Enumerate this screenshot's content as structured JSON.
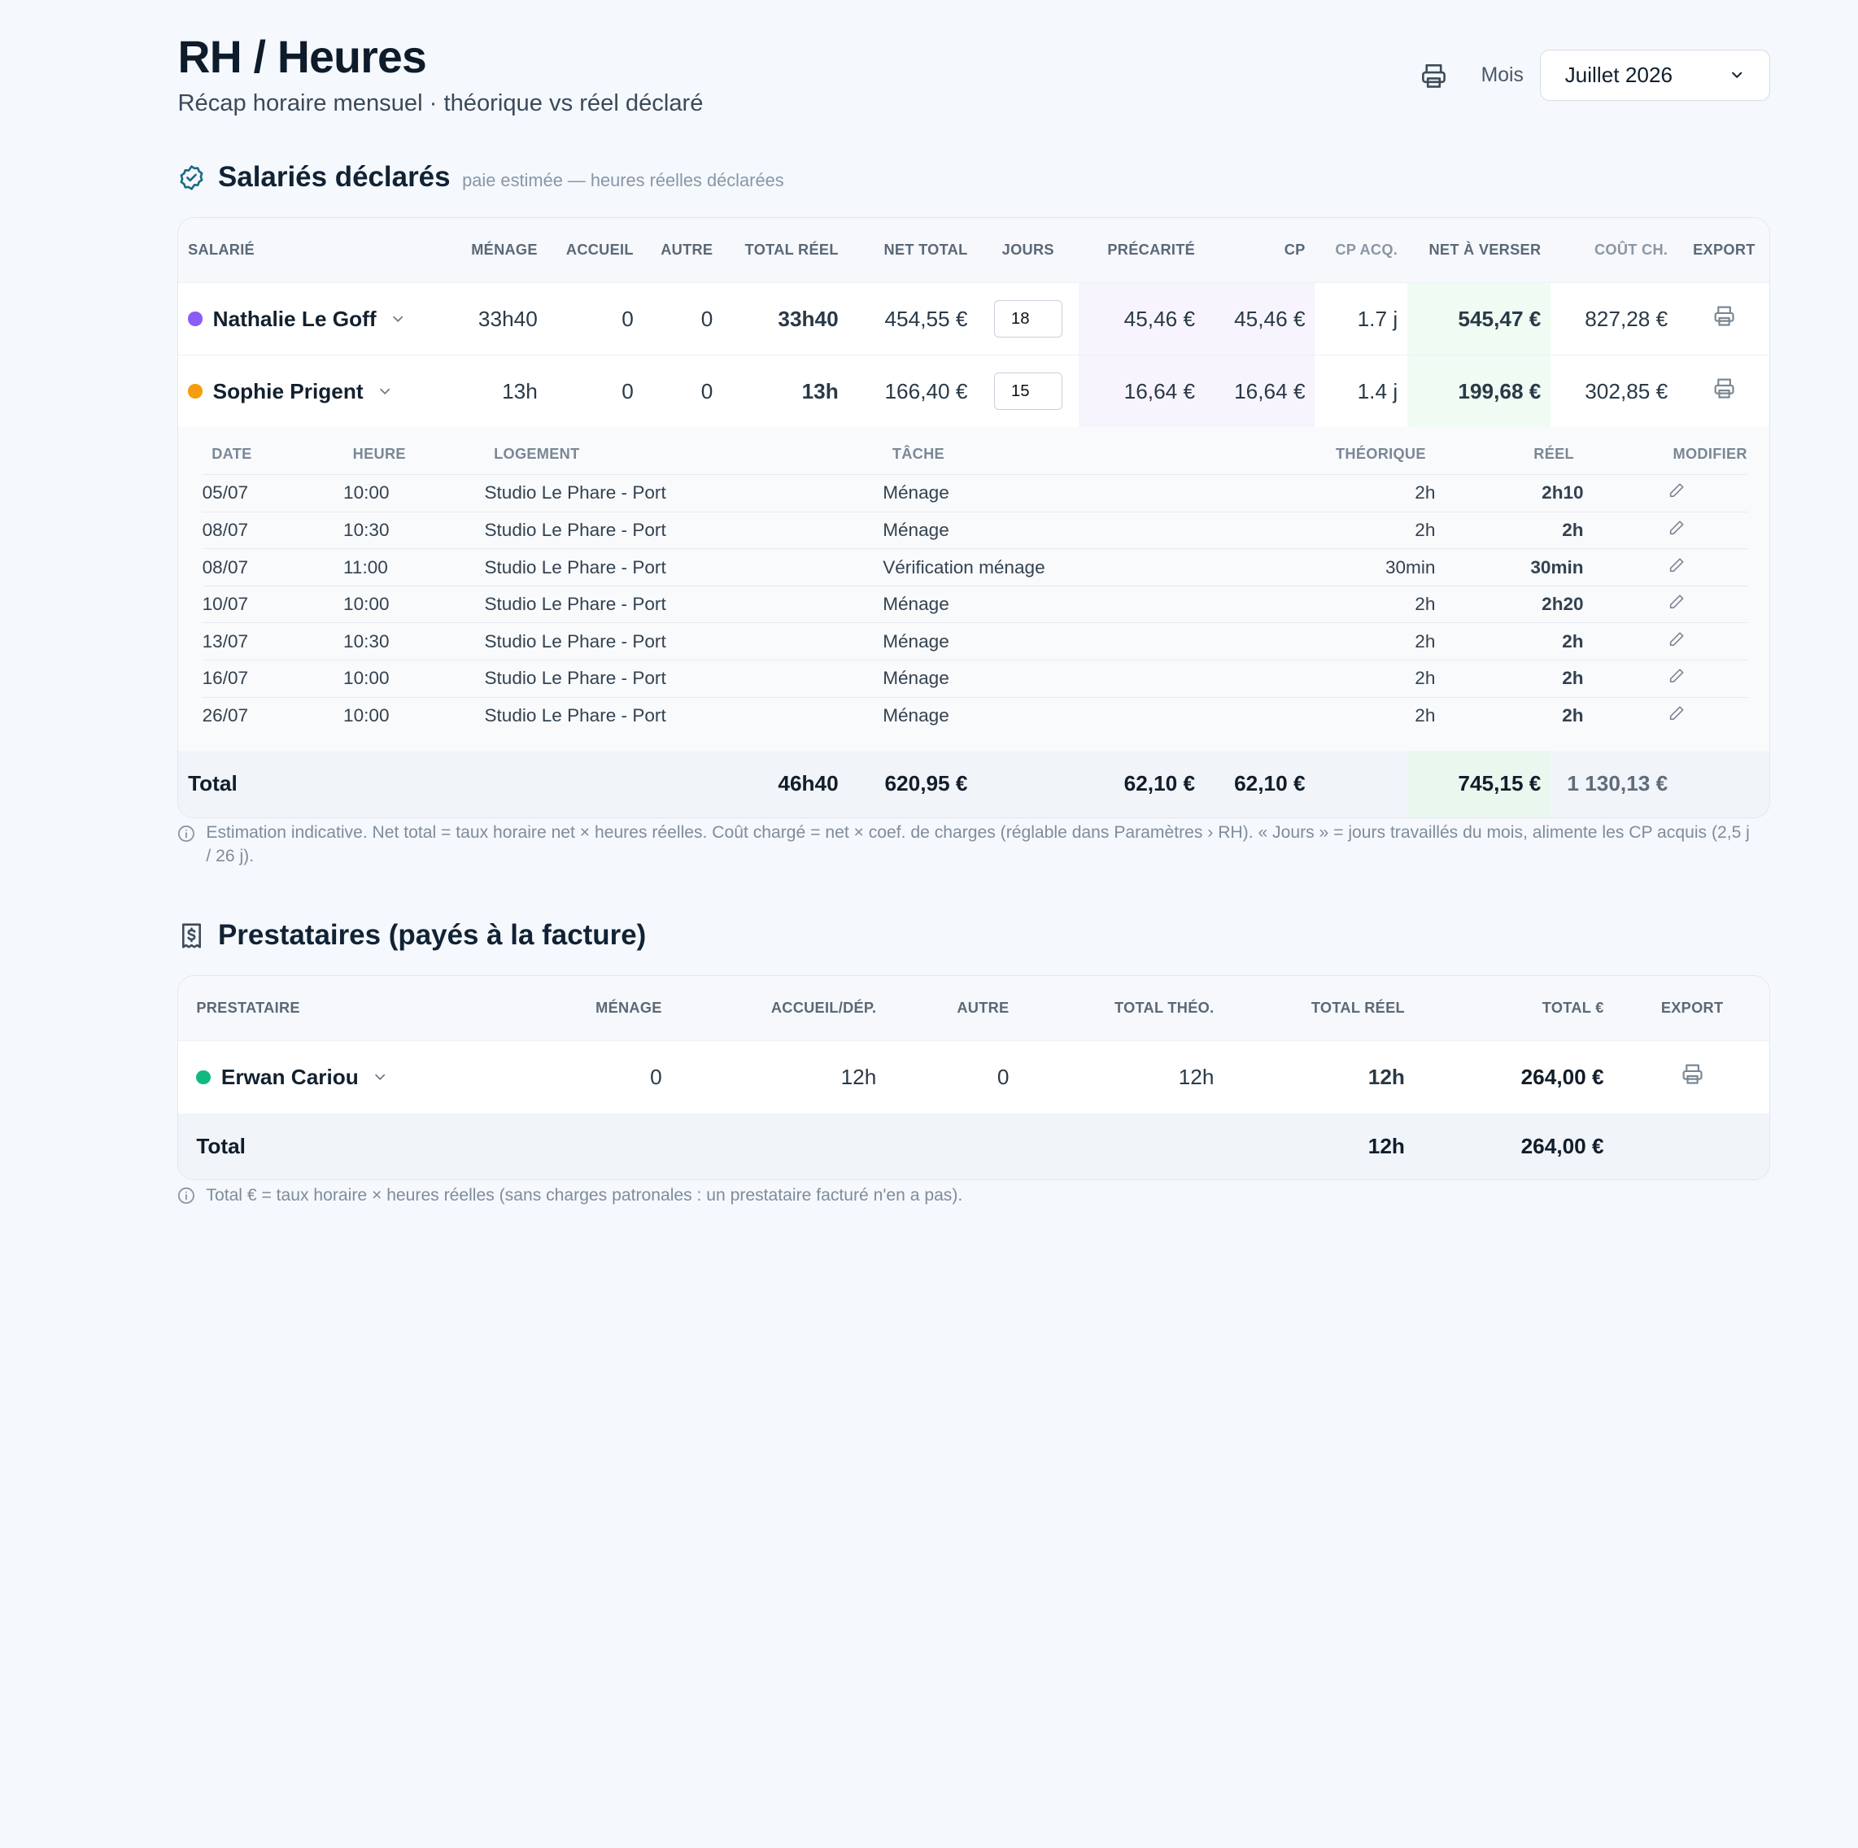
{
  "header": {
    "title": "RH / Heures",
    "subtitle": "Récap horaire mensuel · théorique vs réel déclaré",
    "mois_label": "Mois",
    "mois_value": "Juillet 2026"
  },
  "salaries": {
    "title": "Salariés déclarés",
    "hint": "paie estimée — heures réelles déclarées",
    "columns": [
      "Salarié",
      "Ménage",
      "Accueil",
      "Autre",
      "Total réel",
      "Net total",
      "Jours",
      "Précarité",
      "CP",
      "CP acq.",
      "Net à verser",
      "Coût ch.",
      "Export"
    ],
    "rows": [
      {
        "name": "Nathalie Le Goff",
        "dot": "#8b5cf6",
        "menage": "33h40",
        "accueil": "0",
        "autre": "0",
        "total_reel": "33h40",
        "net_total": "454,55 €",
        "jours": "18",
        "precarite": "45,46 €",
        "cp": "45,46 €",
        "cp_acq": "1.7 j",
        "net_a_verser": "545,47 €",
        "cout_ch": "827,28 €"
      },
      {
        "name": "Sophie Prigent",
        "dot": "#f59e0b",
        "menage": "13h",
        "accueil": "0",
        "autre": "0",
        "total_reel": "13h",
        "net_total": "166,40 €",
        "jours": "15",
        "precarite": "16,64 €",
        "cp": "16,64 €",
        "cp_acq": "1.4 j",
        "net_a_verser": "199,68 €",
        "cout_ch": "302,85 €"
      }
    ],
    "detail": {
      "columns": [
        "Date",
        "Heure",
        "Logement",
        "Tâche",
        "Théorique",
        "Réel",
        "Modifier"
      ],
      "rows": [
        {
          "date": "05/07",
          "heure": "10:00",
          "logement": "Studio Le Phare - Port",
          "tache": "Ménage",
          "theorique": "2h",
          "reel": "2h10"
        },
        {
          "date": "08/07",
          "heure": "10:30",
          "logement": "Studio Le Phare - Port",
          "tache": "Ménage",
          "theorique": "2h",
          "reel": "2h"
        },
        {
          "date": "08/07",
          "heure": "11:00",
          "logement": "Studio Le Phare - Port",
          "tache": "Vérification ménage",
          "theorique": "30min",
          "reel": "30min"
        },
        {
          "date": "10/07",
          "heure": "10:00",
          "logement": "Studio Le Phare - Port",
          "tache": "Ménage",
          "theorique": "2h",
          "reel": "2h20"
        },
        {
          "date": "13/07",
          "heure": "10:30",
          "logement": "Studio Le Phare - Port",
          "tache": "Ménage",
          "theorique": "2h",
          "reel": "2h"
        },
        {
          "date": "16/07",
          "heure": "10:00",
          "logement": "Studio Le Phare - Port",
          "tache": "Ménage",
          "theorique": "2h",
          "reel": "2h"
        },
        {
          "date": "26/07",
          "heure": "10:00",
          "logement": "Studio Le Phare - Port",
          "tache": "Ménage",
          "theorique": "2h",
          "reel": "2h"
        }
      ]
    },
    "total": {
      "label": "Total",
      "total_reel": "46h40",
      "net_total": "620,95 €",
      "precarite": "62,10 €",
      "cp": "62,10 €",
      "net_a_verser": "745,15 €",
      "cout_ch": "1 130,13 €"
    },
    "note": "Estimation indicative. Net total = taux horaire net × heures réelles. Coût chargé = net × coef. de charges (réglable dans Paramètres › RH). « Jours » = jours travaillés du mois, alimente les CP acquis (2,5 j / 26 j)."
  },
  "prestataires": {
    "title": "Prestataires (payés à la facture)",
    "columns": [
      "Prestataire",
      "Ménage",
      "Accueil/Dép.",
      "Autre",
      "Total théo.",
      "Total réel",
      "Total €",
      "Export"
    ],
    "rows": [
      {
        "name": "Erwan Cariou",
        "dot": "#10b981",
        "menage": "0",
        "accueil": "12h",
        "autre": "0",
        "total_theo": "12h",
        "total_reel": "12h",
        "total_eur": "264,00 €"
      }
    ],
    "total": {
      "label": "Total",
      "total_reel": "12h",
      "total_eur": "264,00 €"
    },
    "note": "Total € = taux horaire × heures réelles (sans charges patronales : un prestataire facturé n'en a pas)."
  }
}
